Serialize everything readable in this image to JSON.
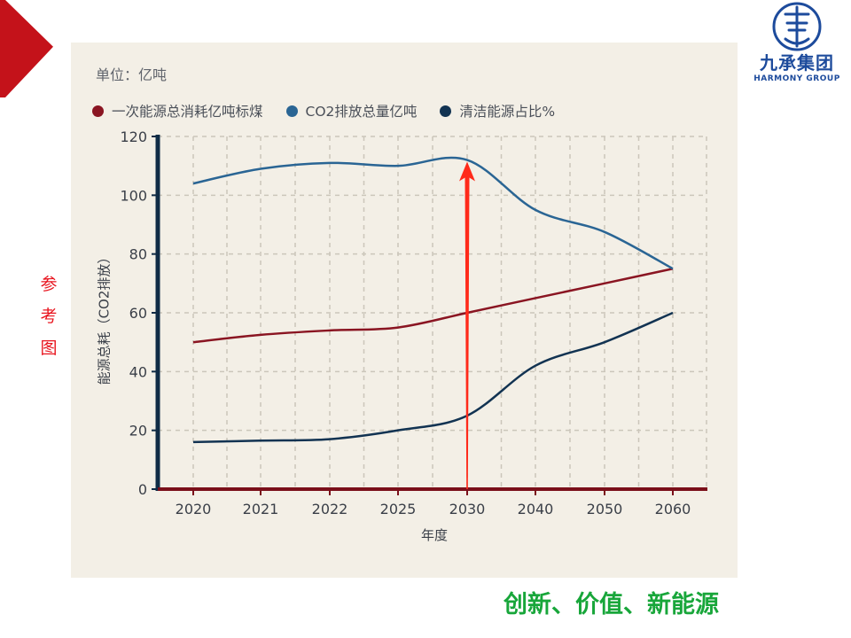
{
  "side_label": [
    "参",
    "考",
    "图"
  ],
  "logo": {
    "title": "九承集团",
    "subtitle": "HARMONY GROUP"
  },
  "slogan": "创新、价值、新能源",
  "colors": {
    "accent_red": "#c4121a",
    "series_energy": "#8a1522",
    "series_co2": "#2a6594",
    "series_clean": "#123352",
    "arrow": "#ff2a1a",
    "panel_bg": "#f3efe6",
    "slogan": "#18a63a"
  },
  "chart_data": {
    "type": "line",
    "unit_label": "单位：亿吨",
    "ylabel": "能源总耗（CO2排放）",
    "xlabel": "年度",
    "categories": [
      "2020",
      "2021",
      "2022",
      "2025",
      "2030",
      "2040",
      "2050",
      "2060"
    ],
    "ylim": [
      0,
      120
    ],
    "yticks": [
      0,
      20,
      40,
      60,
      80,
      100,
      120
    ],
    "grid": true,
    "legend_position": "top-left",
    "series": [
      {
        "name": "一次能源总消耗亿吨标煤",
        "values": [
          50,
          52.5,
          54,
          55,
          60,
          65,
          70,
          75
        ]
      },
      {
        "name": "CO2排放总量亿吨",
        "values": [
          104,
          109,
          111,
          110,
          112,
          95,
          87.5,
          75
        ]
      },
      {
        "name": "清洁能源占比%",
        "values": [
          16,
          16.5,
          17,
          20,
          25,
          42,
          50,
          60
        ]
      }
    ],
    "annotation": {
      "type": "arrow",
      "at_category": "2030",
      "points_to_series": "CO2排放总量亿吨"
    }
  }
}
